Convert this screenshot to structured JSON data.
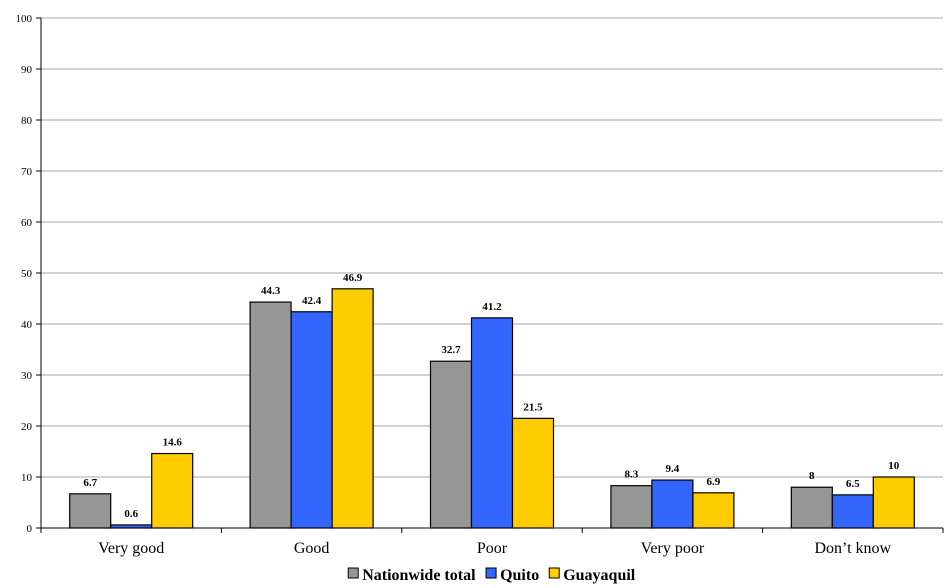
{
  "chart_data": {
    "type": "bar",
    "categories": [
      "Very good",
      "Good",
      "Poor",
      "Very poor",
      "Don’t know"
    ],
    "series": [
      {
        "name": "Nationwide total",
        "color": "#969696",
        "values": [
          6.7,
          44.3,
          32.7,
          8.3,
          8
        ],
        "labels": [
          "6.7",
          "44.3",
          "32.7",
          "8.3",
          "8"
        ]
      },
      {
        "name": "Quito",
        "color": "#3366ff",
        "values": [
          0.6,
          42.4,
          41.2,
          9.4,
          6.5
        ],
        "labels": [
          "0.6",
          "42.4",
          "41.2",
          "9.4",
          "6.5"
        ]
      },
      {
        "name": "Guayaquil",
        "color": "#ffcc00",
        "values": [
          14.6,
          46.9,
          21.5,
          6.9,
          10
        ],
        "labels": [
          "14.6",
          "46.9",
          "21.5",
          "6.9",
          "10"
        ]
      }
    ],
    "yticks": [
      "0",
      "10",
      "20",
      "30",
      "40",
      "50",
      "60",
      "70",
      "80",
      "90",
      "100"
    ],
    "ylim": [
      0,
      100
    ],
    "grid": true,
    "legend": "bottom"
  }
}
